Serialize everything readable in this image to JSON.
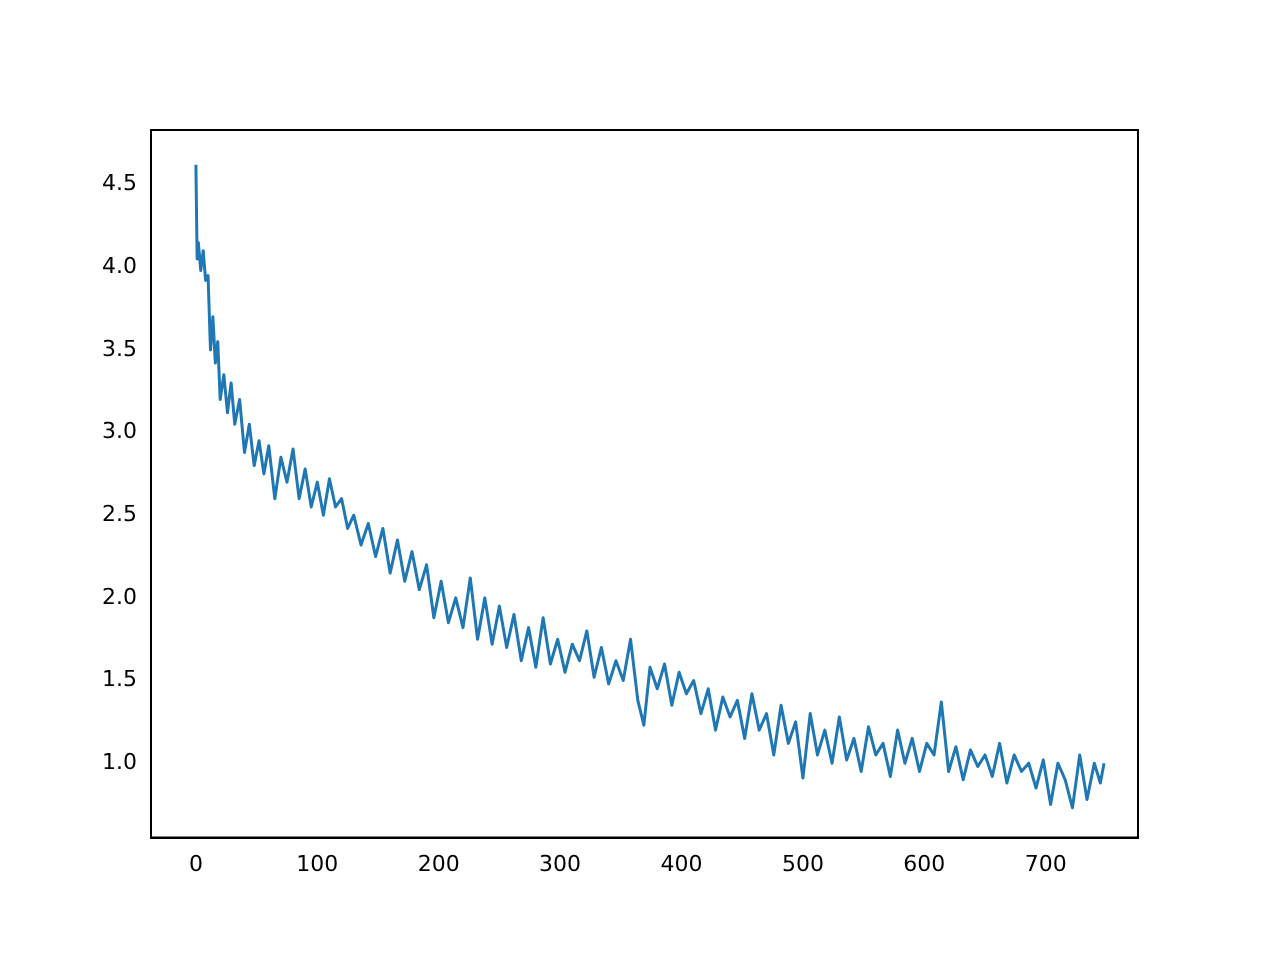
{
  "chart_data": {
    "type": "line",
    "x": [
      0,
      1,
      2,
      4,
      6,
      8,
      10,
      12,
      14,
      16,
      18,
      20,
      23,
      26,
      29,
      32,
      36,
      40,
      44,
      48,
      52,
      56,
      60,
      65,
      70,
      75,
      80,
      85,
      90,
      95,
      100,
      105,
      110,
      115,
      120,
      125,
      130,
      136,
      142,
      148,
      154,
      160,
      166,
      172,
      178,
      184,
      190,
      196,
      202,
      208,
      214,
      220,
      226,
      232,
      238,
      244,
      250,
      256,
      262,
      268,
      274,
      280,
      286,
      292,
      298,
      304,
      310,
      316,
      322,
      328,
      334,
      340,
      346,
      352,
      358,
      364,
      369,
      374,
      380,
      386,
      392,
      398,
      404,
      410,
      416,
      422,
      428,
      434,
      440,
      446,
      452,
      458,
      464,
      470,
      476,
      482,
      488,
      494,
      500,
      506,
      512,
      518,
      524,
      530,
      536,
      542,
      548,
      554,
      560,
      566,
      572,
      578,
      584,
      590,
      596,
      602,
      608,
      614,
      620,
      626,
      632,
      638,
      644,
      650,
      656,
      662,
      668,
      674,
      680,
      686,
      692,
      698,
      704,
      710,
      716,
      722,
      728,
      734,
      740,
      745,
      748
    ],
    "series": [
      {
        "color": "#1f77b4",
        "values": [
          4.62,
          4.05,
          4.15,
          3.98,
          4.1,
          3.92,
          3.95,
          3.5,
          3.7,
          3.42,
          3.55,
          3.2,
          3.35,
          3.12,
          3.3,
          3.05,
          3.2,
          2.88,
          3.05,
          2.8,
          2.95,
          2.75,
          2.92,
          2.6,
          2.85,
          2.7,
          2.9,
          2.6,
          2.78,
          2.55,
          2.7,
          2.5,
          2.72,
          2.55,
          2.6,
          2.42,
          2.5,
          2.32,
          2.45,
          2.25,
          2.42,
          2.15,
          2.35,
          2.1,
          2.28,
          2.05,
          2.2,
          1.88,
          2.1,
          1.85,
          2.0,
          1.82,
          2.12,
          1.75,
          2.0,
          1.72,
          1.95,
          1.7,
          1.9,
          1.62,
          1.82,
          1.58,
          1.88,
          1.6,
          1.75,
          1.55,
          1.72,
          1.62,
          1.8,
          1.52,
          1.7,
          1.48,
          1.62,
          1.5,
          1.75,
          1.38,
          1.23,
          1.58,
          1.45,
          1.6,
          1.35,
          1.55,
          1.42,
          1.5,
          1.3,
          1.45,
          1.2,
          1.4,
          1.28,
          1.38,
          1.15,
          1.42,
          1.2,
          1.3,
          1.05,
          1.35,
          1.12,
          1.25,
          0.91,
          1.3,
          1.05,
          1.2,
          1.0,
          1.28,
          1.02,
          1.15,
          0.95,
          1.22,
          1.05,
          1.12,
          0.92,
          1.2,
          1.0,
          1.15,
          0.95,
          1.12,
          1.05,
          1.37,
          0.95,
          1.1,
          0.9,
          1.08,
          0.98,
          1.05,
          0.92,
          1.12,
          0.88,
          1.05,
          0.95,
          1.0,
          0.85,
          1.02,
          0.75,
          1.0,
          0.9,
          0.73,
          1.05,
          0.78,
          1.0,
          0.88,
          1.0
        ]
      }
    ],
    "xlim": [
      -37,
      776
    ],
    "ylim": [
      0.55,
      4.83
    ],
    "xticks": [
      0,
      100,
      200,
      300,
      400,
      500,
      600,
      700
    ],
    "yticks": [
      {
        "value": 1.0,
        "label": "1.0"
      },
      {
        "value": 1.5,
        "label": "1.5"
      },
      {
        "value": 2.0,
        "label": "2.0"
      },
      {
        "value": 2.5,
        "label": "2.5"
      },
      {
        "value": 3.0,
        "label": "3.0"
      },
      {
        "value": 3.5,
        "label": "3.5"
      },
      {
        "value": 4.0,
        "label": "4.0"
      },
      {
        "value": 4.5,
        "label": "4.5"
      }
    ]
  }
}
